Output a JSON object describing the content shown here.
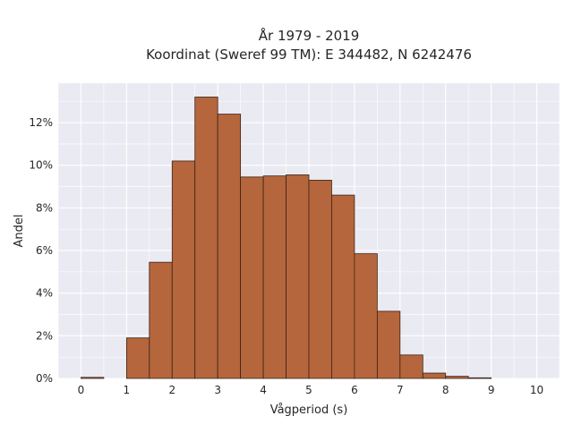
{
  "chart_data": {
    "type": "bar",
    "title": "År 1979 - 2019",
    "subtitle": "Koordinat (Sweref 99 TM): E 344482, N 6242476",
    "xlabel": "Vågperiod (s)",
    "ylabel": "Andel",
    "bin_width": 0.5,
    "bins": [
      {
        "x0": 0.0,
        "x1": 0.5,
        "value": 0.05
      },
      {
        "x0": 0.5,
        "x1": 1.0,
        "value": 0.0
      },
      {
        "x0": 1.0,
        "x1": 1.5,
        "value": 1.9
      },
      {
        "x0": 1.5,
        "x1": 2.0,
        "value": 5.45
      },
      {
        "x0": 2.0,
        "x1": 2.5,
        "value": 10.2
      },
      {
        "x0": 2.5,
        "x1": 3.0,
        "value": 13.2
      },
      {
        "x0": 3.0,
        "x1": 3.5,
        "value": 12.4
      },
      {
        "x0": 3.5,
        "x1": 4.0,
        "value": 9.45
      },
      {
        "x0": 4.0,
        "x1": 4.5,
        "value": 9.5
      },
      {
        "x0": 4.5,
        "x1": 5.0,
        "value": 9.55
      },
      {
        "x0": 5.0,
        "x1": 5.5,
        "value": 9.3
      },
      {
        "x0": 5.5,
        "x1": 6.0,
        "value": 8.6
      },
      {
        "x0": 6.0,
        "x1": 6.5,
        "value": 5.85
      },
      {
        "x0": 6.5,
        "x1": 7.0,
        "value": 3.15
      },
      {
        "x0": 7.0,
        "x1": 7.5,
        "value": 1.1
      },
      {
        "x0": 7.5,
        "x1": 8.0,
        "value": 0.25
      },
      {
        "x0": 8.0,
        "x1": 8.5,
        "value": 0.1
      },
      {
        "x0": 8.5,
        "x1": 9.0,
        "value": 0.03
      },
      {
        "x0": 9.0,
        "x1": 9.5,
        "value": 0.0
      },
      {
        "x0": 9.5,
        "x1": 10.0,
        "value": 0.0
      }
    ],
    "xlim": [
      -0.5,
      10.5
    ],
    "ylim": [
      0,
      13.85
    ],
    "xticks": [
      0,
      1,
      2,
      3,
      4,
      5,
      6,
      7,
      8,
      9,
      10
    ],
    "xtick_labels": [
      "0",
      "1",
      "2",
      "3",
      "4",
      "5",
      "6",
      "7",
      "8",
      "9",
      "10"
    ],
    "yticks": [
      0,
      2,
      4,
      6,
      8,
      10,
      12
    ],
    "ytick_labels": [
      "0%",
      "2%",
      "4%",
      "6%",
      "8%",
      "10%",
      "12%"
    ],
    "grid": true,
    "legend": "none",
    "colors": {
      "bar_fill": "#b5663c",
      "bar_edge": "#3a2418",
      "plot_background": "#eaeaf2",
      "grid": "#ffffff"
    }
  }
}
